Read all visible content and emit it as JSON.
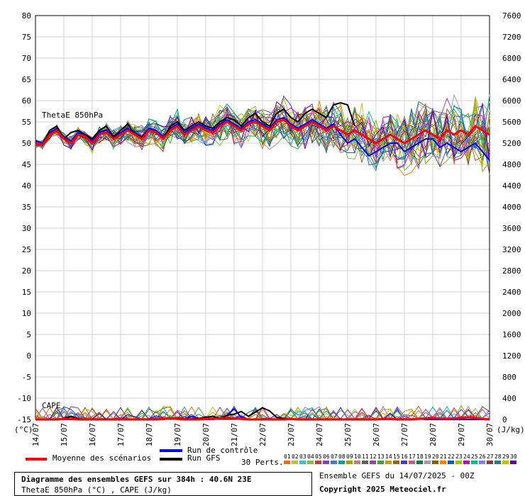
{
  "chart_data": {
    "type": "line",
    "title": "Diagramme des ensembles GEFS sur 384h : 40.6N 23E",
    "subtitle": "ThetaE 850hPa (°C) , CAPE (J/kg)",
    "y_left_label": "(°C)",
    "y_right_label": "(J/kg)",
    "y_left_ticks": [
      80,
      75,
      70,
      65,
      60,
      55,
      50,
      45,
      40,
      35,
      30,
      25,
      20,
      15,
      10,
      5,
      0,
      -5,
      -10,
      -15
    ],
    "y_right_ticks": [
      7600,
      7200,
      6800,
      6400,
      6000,
      5600,
      5200,
      4800,
      4400,
      4000,
      3600,
      3200,
      2800,
      2400,
      2000,
      1600,
      1200,
      800,
      400,
      0
    ],
    "ylim_left": [
      -15,
      80
    ],
    "ylim_right": [
      0,
      7600
    ],
    "x_labels": [
      "14/07",
      "15/07",
      "16/07",
      "17/07",
      "18/07",
      "19/07",
      "20/07",
      "21/07",
      "22/07",
      "23/07",
      "24/07",
      "25/07",
      "26/07",
      "27/07",
      "28/07",
      "29/07",
      "30/07"
    ],
    "x_range_hours": [
      0,
      384
    ],
    "grid": true,
    "annotations": {
      "thetae": "ThetaE 850hPa",
      "cape": "CAPE"
    },
    "mean_series": {
      "name": "Moyenne des scénarios",
      "color": "#ff0000",
      "x": [
        0,
        6,
        12,
        18,
        24,
        30,
        36,
        42,
        48,
        54,
        60,
        66,
        72,
        78,
        84,
        90,
        96,
        102,
        108,
        114,
        120,
        126,
        132,
        138,
        144,
        150,
        156,
        162,
        168,
        174,
        180,
        186,
        192,
        198,
        204,
        210,
        216,
        222,
        228,
        234,
        240,
        246,
        252,
        258,
        264,
        270,
        276,
        282,
        288,
        294,
        300,
        306,
        312,
        318,
        324,
        330,
        336,
        342,
        348,
        354,
        360,
        366,
        372,
        378,
        384
      ],
      "y": [
        50,
        49.5,
        52,
        53,
        51,
        50,
        52,
        51.5,
        50,
        52,
        52.5,
        51,
        52,
        53,
        52,
        51,
        53,
        52.5,
        51,
        53,
        54,
        52,
        53,
        54,
        53,
        52.5,
        54,
        55,
        54,
        53,
        54.5,
        55,
        54,
        53,
        55,
        55.5,
        54,
        53,
        54,
        55,
        54,
        53,
        54,
        53,
        52,
        53,
        52,
        51,
        50,
        51,
        52,
        51,
        50,
        51,
        52,
        53,
        52,
        51,
        53,
        52,
        53,
        52,
        54,
        53,
        52
      ],
      "cape": [
        0,
        0,
        0,
        0,
        10,
        10,
        0,
        0,
        0,
        0,
        0,
        0,
        0,
        0,
        0,
        0,
        0,
        0,
        10,
        20,
        10,
        0,
        0,
        0,
        10,
        10,
        20,
        30,
        20,
        10,
        0,
        0,
        0,
        0,
        0,
        0,
        10,
        0,
        0,
        0,
        0,
        0,
        0,
        0,
        0,
        0,
        0,
        0,
        0,
        10,
        10,
        0,
        0,
        0,
        10,
        20,
        30,
        20,
        10,
        20,
        30,
        40,
        30,
        10,
        0
      ]
    },
    "control_series": {
      "name": "Run de contrôle",
      "color": "#0000ff",
      "y": [
        50.5,
        50,
        52.5,
        53.5,
        51.5,
        50.5,
        52.5,
        52,
        50.5,
        52.5,
        53,
        51.5,
        52.5,
        53.5,
        52.5,
        51.5,
        53.5,
        53,
        51.5,
        53.5,
        54.5,
        52.5,
        53.5,
        54.5,
        53.5,
        53,
        54.5,
        55.5,
        54.5,
        53.5,
        55,
        55.5,
        54.5,
        53.5,
        55.5,
        56,
        54.5,
        53.5,
        54.5,
        55.5,
        54.5,
        53.5,
        54.5,
        52,
        50,
        51,
        49,
        47,
        48,
        49,
        50,
        50,
        48,
        49,
        50,
        51,
        51,
        49,
        50,
        49,
        48,
        49,
        50,
        48,
        46
      ],
      "cape": [
        0,
        0,
        0,
        0,
        0,
        0,
        10,
        0,
        0,
        0,
        0,
        0,
        0,
        10,
        0,
        0,
        10,
        10,
        0,
        20,
        30,
        10,
        60,
        20,
        0,
        0,
        20,
        80,
        200,
        40,
        0,
        0,
        0,
        0,
        0,
        0,
        0,
        0,
        0,
        0,
        0,
        0,
        0,
        10,
        0,
        0,
        0,
        0,
        0,
        0,
        0,
        0,
        0,
        0,
        10,
        0,
        0,
        0,
        0,
        0,
        0,
        0,
        0,
        0,
        0
      ]
    },
    "gfs_series": {
      "name": "Run GFS",
      "color": "#000000",
      "y": [
        50,
        49.5,
        53,
        54,
        51,
        52.5,
        53,
        52,
        51,
        53,
        54,
        51.5,
        53,
        54.5,
        52,
        51.5,
        53,
        52.5,
        51,
        54,
        55,
        53,
        54,
        55,
        54,
        53.5,
        55,
        56,
        55.5,
        54,
        56,
        57,
        55,
        54,
        57,
        58,
        56,
        55,
        57,
        58,
        57,
        56,
        59,
        59.5,
        59,
        54
      ],
      "cape": [
        0,
        0,
        0,
        0,
        20,
        60,
        20,
        0,
        0,
        0,
        0,
        0,
        0,
        0,
        0,
        0,
        0,
        0,
        10,
        20,
        20,
        0,
        10,
        20,
        40,
        60,
        20,
        80,
        100,
        150,
        60,
        140,
        220,
        160,
        40,
        20,
        10,
        0,
        0,
        0,
        0,
        0,
        0,
        10,
        0,
        0
      ]
    },
    "perturbations_label": "30 Perts.",
    "perturbation_ids": [
      "01",
      "02",
      "03",
      "04",
      "05",
      "06",
      "07",
      "08",
      "09",
      "10",
      "11",
      "12",
      "13",
      "14",
      "15",
      "16",
      "17",
      "18",
      "19",
      "20",
      "21",
      "22",
      "23",
      "24",
      "25",
      "26",
      "27",
      "28",
      "29",
      "30"
    ],
    "perturbation_colors": [
      "#e07020",
      "#c0c040",
      "#40c0c0",
      "#80c040",
      "#c04040",
      "#8040c0",
      "#4080c0",
      "#00a0a0",
      "#a0a000",
      "#c08080",
      "#606060",
      "#a040a0",
      "#40a040",
      "#c0a000",
      "#a06020",
      "#4040c0",
      "#c06080",
      "#008040",
      "#a0a0a0",
      "#806000",
      "#ff8000",
      "#0060c0",
      "#a0c000",
      "#c000c0",
      "#00c080",
      "#8080ff",
      "#804040",
      "#208080",
      "#c0c000",
      "#6000a0"
    ],
    "perturbation_seed": 17
  },
  "legend": {
    "mean_label": "Moyenne des scénarios",
    "control_label": "Run de contrôle",
    "gfs_label": "Run GFS",
    "perts_label": "30 Perts."
  },
  "footer": {
    "title": "Diagramme des ensembles GEFS sur 384h : 40.6N 23E",
    "subtitle": "ThetaE 850hPa (°C) , CAPE (J/kg)",
    "run_info": "Ensemble GEFS du 14/07/2025 - 00Z",
    "copyright": "Copyright 2025 Meteociel.fr"
  }
}
